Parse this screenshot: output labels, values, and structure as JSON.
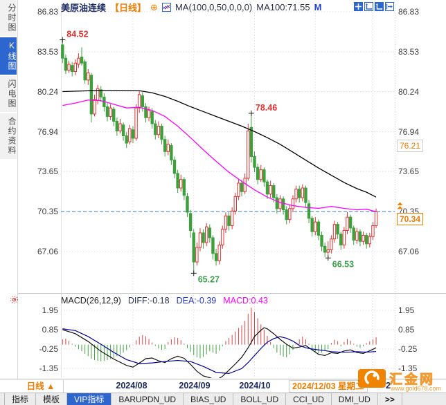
{
  "header": {
    "symbol": "美原油连续",
    "period_tag": "【日线】",
    "plus_icon": "⊕",
    "ma_formula": "MA(100,0,50,0,0,0)",
    "ma100_value": "MA100:71.55",
    "ma_extra": "M"
  },
  "sidebar": {
    "items": [
      {
        "label": "分时图",
        "active": false
      },
      {
        "label": "K线图",
        "active": true
      },
      {
        "label": "闪电图",
        "active": false
      },
      {
        "label": "合约资料",
        "active": false
      }
    ]
  },
  "price_axis": {
    "labels": [
      86.83,
      83.53,
      80.24,
      76.94,
      73.65,
      70.35,
      67.06
    ],
    "order_badge": "76.21",
    "last_price_badge": "70.34"
  },
  "macd_axis": {
    "labels": [
      1.95,
      0.85,
      -0.25,
      -1.35
    ]
  },
  "macd_header": {
    "title": "MACD(26,12,9)",
    "diff": "DIFF:-0.18",
    "dea": "DEA:-0.39",
    "macd": "MACD:0.43"
  },
  "date_axis": {
    "period_label": "日线 ▲",
    "month_labels": [
      "2024/08",
      "2024/09",
      "2024/10"
    ],
    "selected_date": "2024/12/03 星期二",
    "partial_label": "2"
  },
  "bottom_tabs": {
    "items": [
      "指标",
      "模板",
      "VIP指标",
      "BARUPDN_UD",
      "BIAS_UD",
      "BOLL_UD",
      "CCI_UD",
      "DMI_UD"
    ],
    "active_index": 2,
    "more": ">>"
  },
  "watermark": {
    "site_name": "汇金网",
    "site_url": "www.gold678.com"
  },
  "colors": {
    "up": "#e03131",
    "down": "#3da03d",
    "ma100": "#000000",
    "ma50": "#ff00ff",
    "diff": "#111111",
    "dea": "#000099",
    "hist_up": "#d94343",
    "hist_down": "#3fa23f",
    "price_line": "#2f7fd6",
    "accent_orange": "#f07d00",
    "navy": "#1b2a63",
    "active_blue": "#2e66d0"
  },
  "chart_data": {
    "type": "candlestick",
    "title": "美原油连续 日线 (WTI Crude Continuous, daily)",
    "price_ylim": [
      63.8,
      87.2
    ],
    "price_gridlines": [
      86.83,
      83.53,
      80.24,
      76.94,
      73.65,
      67.06
    ],
    "current_price": 70.34,
    "current_price_line": 70.35,
    "month_tick_bars": [
      22,
      41,
      60,
      79,
      97
    ],
    "candles": [
      [
        84.1,
        84.52,
        82.6,
        83.0
      ],
      [
        83.0,
        83.3,
        81.7,
        82.0
      ],
      [
        82.0,
        82.8,
        81.8,
        82.5
      ],
      [
        82.4,
        82.7,
        81.5,
        81.9
      ],
      [
        81.9,
        82.9,
        81.6,
        82.6
      ],
      [
        82.5,
        83.4,
        82.2,
        83.0
      ],
      [
        83.1,
        83.9,
        82.4,
        82.6
      ],
      [
        82.7,
        82.9,
        80.9,
        81.2
      ],
      [
        81.2,
        82.1,
        80.8,
        81.8
      ],
      [
        81.6,
        81.8,
        77.7,
        78.4
      ],
      [
        78.4,
        80.0,
        78.2,
        79.6
      ],
      [
        79.5,
        80.8,
        79.2,
        80.5
      ],
      [
        80.4,
        80.7,
        79.4,
        79.8
      ],
      [
        79.8,
        80.1,
        78.6,
        79.0
      ],
      [
        79.0,
        79.3,
        77.8,
        78.2
      ],
      [
        78.2,
        79.2,
        77.9,
        78.9
      ],
      [
        78.8,
        79.0,
        77.4,
        77.8
      ],
      [
        77.8,
        78.1,
        76.6,
        77.0
      ],
      [
        77.0,
        78.0,
        76.8,
        77.6
      ],
      [
        77.5,
        77.7,
        76.2,
        76.6
      ],
      [
        76.6,
        76.9,
        75.6,
        76.0
      ],
      [
        76.1,
        77.5,
        75.9,
        77.2
      ],
      [
        77.1,
        77.4,
        76.0,
        76.4
      ],
      [
        76.4,
        79.2,
        76.2,
        78.9
      ],
      [
        78.9,
        80.3,
        78.5,
        80.0
      ],
      [
        79.9,
        80.2,
        78.6,
        79.0
      ],
      [
        79.0,
        79.3,
        77.7,
        78.1
      ],
      [
        78.1,
        79.0,
        77.8,
        78.7
      ],
      [
        78.6,
        78.9,
        77.2,
        77.6
      ],
      [
        77.6,
        77.9,
        76.3,
        76.7
      ],
      [
        76.7,
        77.8,
        76.4,
        77.4
      ],
      [
        77.4,
        77.6,
        75.9,
        76.3
      ],
      [
        76.3,
        76.6,
        74.9,
        75.3
      ],
      [
        75.3,
        76.3,
        75.0,
        75.9
      ],
      [
        75.8,
        76.0,
        74.2,
        74.6
      ],
      [
        74.6,
        74.9,
        73.1,
        73.5
      ],
      [
        73.5,
        73.8,
        71.9,
        72.3
      ],
      [
        72.3,
        73.4,
        72.0,
        73.0
      ],
      [
        73.0,
        73.2,
        71.3,
        71.7
      ],
      [
        71.6,
        71.9,
        69.9,
        70.3
      ],
      [
        70.2,
        70.5,
        68.2,
        68.8
      ],
      [
        68.6,
        68.9,
        65.27,
        66.2
      ],
      [
        66.2,
        67.8,
        65.9,
        67.4
      ],
      [
        67.4,
        69.0,
        67.1,
        68.6
      ],
      [
        68.6,
        68.9,
        67.3,
        67.8
      ],
      [
        67.8,
        69.4,
        67.5,
        69.1
      ],
      [
        69.0,
        69.3,
        67.8,
        68.2
      ],
      [
        68.2,
        68.4,
        66.4,
        66.9
      ],
      [
        66.9,
        67.3,
        65.9,
        66.3
      ],
      [
        66.3,
        67.9,
        66.0,
        67.6
      ],
      [
        67.6,
        69.2,
        67.3,
        68.9
      ],
      [
        68.9,
        70.3,
        68.6,
        70.0
      ],
      [
        70.0,
        70.3,
        68.8,
        69.2
      ],
      [
        69.2,
        70.7,
        68.9,
        70.4
      ],
      [
        70.4,
        71.9,
        70.1,
        71.6
      ],
      [
        71.6,
        73.0,
        71.3,
        72.7
      ],
      [
        72.7,
        73.0,
        71.6,
        72.0
      ],
      [
        72.0,
        73.5,
        71.8,
        73.1
      ],
      [
        73.1,
        77.6,
        72.9,
        77.0
      ],
      [
        77.3,
        78.46,
        74.4,
        74.9
      ],
      [
        74.9,
        75.3,
        73.6,
        74.0
      ],
      [
        74.0,
        74.3,
        72.6,
        73.0
      ],
      [
        73.0,
        74.2,
        72.8,
        73.8
      ],
      [
        73.8,
        74.0,
        72.4,
        72.8
      ],
      [
        72.8,
        73.0,
        71.4,
        71.8
      ],
      [
        71.8,
        72.9,
        71.5,
        72.5
      ],
      [
        72.5,
        72.7,
        71.1,
        71.5
      ],
      [
        71.5,
        71.8,
        70.2,
        70.6
      ],
      [
        70.6,
        71.7,
        70.3,
        71.4
      ],
      [
        71.4,
        71.6,
        70.1,
        70.5
      ],
      [
        70.5,
        70.8,
        69.3,
        69.7
      ],
      [
        69.7,
        70.9,
        69.4,
        70.6
      ],
      [
        70.6,
        71.7,
        70.3,
        71.4
      ],
      [
        71.4,
        72.5,
        71.1,
        72.2
      ],
      [
        72.2,
        72.5,
        71.1,
        71.5
      ],
      [
        71.5,
        72.6,
        71.2,
        72.3
      ],
      [
        72.3,
        72.5,
        70.7,
        71.1
      ],
      [
        71.0,
        71.3,
        69.4,
        69.8
      ],
      [
        69.8,
        70.0,
        68.3,
        68.7
      ],
      [
        68.7,
        69.9,
        68.4,
        69.5
      ],
      [
        69.5,
        69.7,
        68.0,
        68.4
      ],
      [
        68.4,
        68.7,
        67.1,
        67.5
      ],
      [
        67.5,
        67.8,
        66.6,
        67.0
      ],
      [
        67.0,
        67.9,
        66.53,
        67.2
      ],
      [
        67.2,
        68.4,
        66.9,
        68.1
      ],
      [
        68.1,
        69.6,
        67.8,
        69.3
      ],
      [
        69.3,
        69.5,
        68.1,
        68.5
      ],
      [
        68.5,
        68.7,
        67.2,
        67.6
      ],
      [
        67.6,
        69.1,
        67.3,
        68.8
      ],
      [
        68.8,
        70.3,
        68.5,
        69.9
      ],
      [
        69.9,
        70.1,
        68.6,
        69.0
      ],
      [
        69.0,
        69.2,
        67.6,
        68.0
      ],
      [
        68.0,
        69.0,
        67.7,
        68.7
      ],
      [
        68.7,
        68.9,
        67.5,
        67.9
      ],
      [
        67.9,
        68.7,
        67.6,
        68.4
      ],
      [
        68.4,
        68.6,
        67.3,
        67.7
      ],
      [
        67.7,
        68.6,
        67.4,
        68.3
      ],
      [
        68.3,
        69.5,
        68.0,
        69.2
      ],
      [
        69.2,
        70.6,
        69.0,
        70.34
      ]
    ],
    "ma100_points": [
      [
        0,
        80.25
      ],
      [
        6,
        80.3
      ],
      [
        12,
        80.35
      ],
      [
        18,
        80.35
      ],
      [
        24,
        80.32
      ],
      [
        28,
        80.15
      ],
      [
        32,
        79.85
      ],
      [
        36,
        79.45
      ],
      [
        40,
        79.0
      ],
      [
        44,
        78.6
      ],
      [
        48,
        78.2
      ],
      [
        52,
        77.8
      ],
      [
        56,
        77.4
      ],
      [
        60,
        76.95
      ],
      [
        64,
        76.45
      ],
      [
        68,
        75.9
      ],
      [
        72,
        75.25
      ],
      [
        76,
        74.6
      ],
      [
        80,
        73.95
      ],
      [
        84,
        73.35
      ],
      [
        88,
        72.75
      ],
      [
        92,
        72.25
      ],
      [
        95,
        71.95
      ],
      [
        98,
        71.55
      ]
    ],
    "ma50_points": [
      [
        0,
        79.1
      ],
      [
        4,
        79.3
      ],
      [
        8,
        79.55
      ],
      [
        12,
        79.5
      ],
      [
        16,
        79.2
      ],
      [
        20,
        78.9
      ],
      [
        24,
        78.95
      ],
      [
        28,
        78.7
      ],
      [
        32,
        78.2
      ],
      [
        36,
        77.4
      ],
      [
        40,
        76.45
      ],
      [
        44,
        75.45
      ],
      [
        48,
        74.5
      ],
      [
        52,
        73.6
      ],
      [
        56,
        72.85
      ],
      [
        60,
        72.15
      ],
      [
        64,
        71.55
      ],
      [
        68,
        71.1
      ],
      [
        72,
        70.85
      ],
      [
        76,
        70.7
      ],
      [
        80,
        70.62
      ],
      [
        84,
        70.78
      ],
      [
        88,
        70.62
      ],
      [
        92,
        70.5
      ],
      [
        95,
        70.55
      ],
      [
        98,
        70.35
      ]
    ],
    "annotations": [
      {
        "bar": 0,
        "price": 84.52,
        "label": "84.52",
        "type": "high"
      },
      {
        "bar": 59,
        "price": 78.46,
        "label": "78.46",
        "type": "high"
      },
      {
        "bar": 41,
        "price": 65.27,
        "label": "65.27",
        "type": "low"
      },
      {
        "bar": 83,
        "price": 66.53,
        "label": "66.53",
        "type": "low"
      }
    ],
    "macd": {
      "ylim": [
        -1.82,
        2.81
      ],
      "gridlines": [
        1.95,
        0.85,
        -0.25,
        -1.35
      ],
      "values": {
        "diff": -0.18,
        "dea": -0.39,
        "macd": 0.43
      },
      "hist": [
        0.3,
        0.34,
        0.22,
        0.05,
        -0.12,
        -0.25,
        -0.38,
        -0.52,
        -0.65,
        -0.8,
        -0.88,
        -0.92,
        -0.95,
        -0.92,
        -0.88,
        -0.82,
        -0.75,
        -0.66,
        -0.56,
        -0.45,
        -0.32,
        -0.16,
        0.02,
        0.25,
        0.45,
        0.55,
        0.48,
        0.32,
        0.12,
        -0.08,
        -0.22,
        -0.3,
        -0.25,
        0.15,
        0.3,
        0.42,
        0.38,
        0.25,
        0.05,
        -0.2,
        -0.42,
        -0.6,
        -0.72,
        -0.78,
        -0.7,
        -0.55,
        -0.38,
        -0.45,
        -0.52,
        -0.35,
        -0.1,
        0.2,
        0.38,
        0.55,
        0.75,
        0.95,
        1.1,
        1.35,
        1.75,
        2.1,
        1.85,
        1.5,
        1.15,
        0.85,
        0.5,
        0.15,
        -0.2,
        -0.45,
        -0.6,
        -0.68,
        -0.72,
        -0.55,
        -0.3,
        0.12,
        0.3,
        0.45,
        0.3,
        0.05,
        -0.28,
        -0.42,
        -0.5,
        -0.45,
        -0.35,
        -0.25,
        0.1,
        0.28,
        0.2,
        -0.1,
        0.15,
        0.32,
        0.22,
        0.05,
        -0.12,
        -0.18,
        -0.1,
        0.08,
        0.18,
        0.3,
        0.42
      ],
      "diff_points": [
        [
          0,
          0.85
        ],
        [
          4,
          0.62
        ],
        [
          8,
          0.18
        ],
        [
          12,
          -0.38
        ],
        [
          16,
          -0.82
        ],
        [
          20,
          -1.18
        ],
        [
          22,
          -1.28
        ],
        [
          24,
          -1.05
        ],
        [
          26,
          -0.8
        ],
        [
          28,
          -0.76
        ],
        [
          30,
          -0.92
        ],
        [
          32,
          -1.02
        ],
        [
          34,
          -0.8
        ],
        [
          36,
          -0.66
        ],
        [
          38,
          -0.78
        ],
        [
          40,
          -1.12
        ],
        [
          42,
          -1.52
        ],
        [
          44,
          -1.78
        ],
        [
          46,
          -1.88
        ],
        [
          48,
          -2.02
        ],
        [
          50,
          -1.8
        ],
        [
          52,
          -1.45
        ],
        [
          54,
          -1.1
        ],
        [
          56,
          -0.72
        ],
        [
          58,
          -0.18
        ],
        [
          60,
          0.46
        ],
        [
          62,
          0.82
        ],
        [
          63,
          0.96
        ],
        [
          64,
          0.9
        ],
        [
          66,
          0.62
        ],
        [
          68,
          0.3
        ],
        [
          70,
          0.02
        ],
        [
          72,
          -0.2
        ],
        [
          74,
          -0.14
        ],
        [
          76,
          -0.05
        ],
        [
          78,
          -0.3
        ],
        [
          80,
          -0.55
        ],
        [
          82,
          -0.62
        ],
        [
          84,
          -0.46
        ],
        [
          86,
          -0.5
        ],
        [
          88,
          -0.36
        ],
        [
          90,
          -0.3
        ],
        [
          92,
          -0.45
        ],
        [
          94,
          -0.5
        ],
        [
          96,
          -0.35
        ],
        [
          98,
          -0.18
        ]
      ],
      "dea_points": [
        [
          0,
          0.9
        ],
        [
          4,
          0.8
        ],
        [
          8,
          0.46
        ],
        [
          12,
          0.02
        ],
        [
          16,
          -0.44
        ],
        [
          20,
          -0.85
        ],
        [
          24,
          -1.08
        ],
        [
          28,
          -1.04
        ],
        [
          32,
          -0.96
        ],
        [
          36,
          -0.9
        ],
        [
          40,
          -0.96
        ],
        [
          44,
          -1.24
        ],
        [
          48,
          -1.58
        ],
        [
          52,
          -1.64
        ],
        [
          56,
          -1.36
        ],
        [
          58,
          -1.02
        ],
        [
          60,
          -0.62
        ],
        [
          62,
          -0.22
        ],
        [
          64,
          0.14
        ],
        [
          66,
          0.34
        ],
        [
          68,
          0.45
        ],
        [
          70,
          0.36
        ],
        [
          72,
          0.2
        ],
        [
          74,
          -0.04
        ],
        [
          76,
          -0.18
        ],
        [
          78,
          -0.25
        ],
        [
          80,
          -0.3
        ],
        [
          82,
          -0.34
        ],
        [
          84,
          -0.4
        ],
        [
          86,
          -0.42
        ],
        [
          88,
          -0.43
        ],
        [
          90,
          -0.42
        ],
        [
          92,
          -0.4
        ],
        [
          94,
          -0.42
        ],
        [
          96,
          -0.42
        ],
        [
          98,
          -0.39
        ]
      ]
    }
  }
}
